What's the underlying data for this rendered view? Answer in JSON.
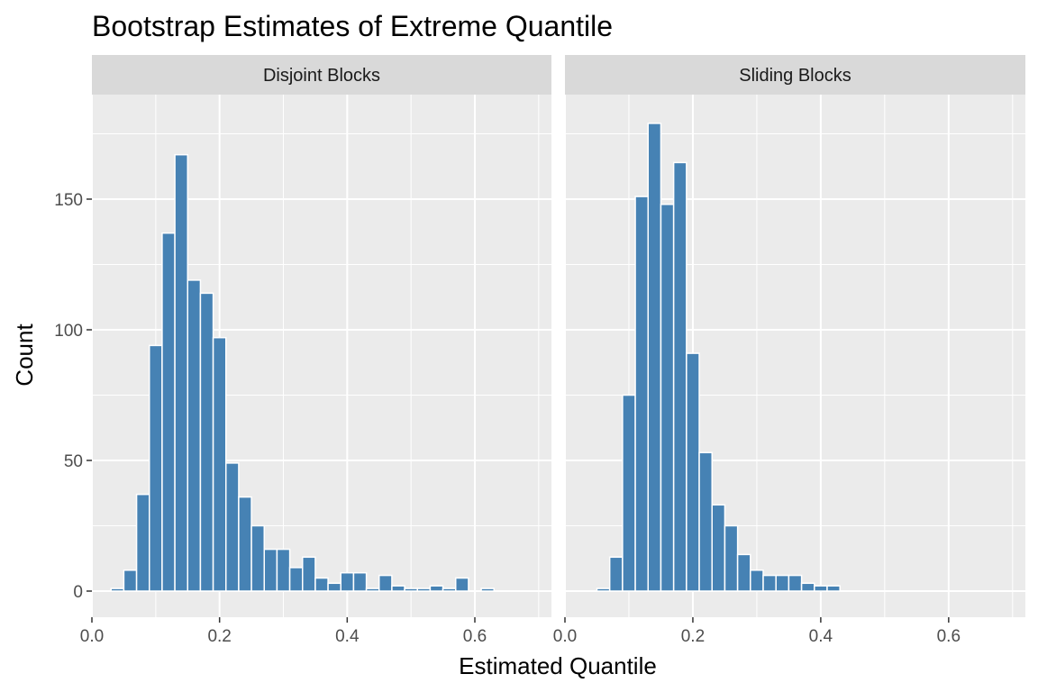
{
  "chart_data": {
    "type": "bar",
    "title": "Bootstrap Estimates of Extreme Quantile",
    "xlabel": "Estimated Quantile",
    "ylabel": "Count",
    "xlim": [
      0.0,
      0.72
    ],
    "ylim": [
      -10,
      190
    ],
    "x_ticks": [
      0.0,
      0.2,
      0.4,
      0.6
    ],
    "x_tick_labels": [
      "0.0",
      "0.2",
      "0.4",
      "0.6"
    ],
    "y_ticks": [
      0,
      50,
      100,
      150
    ],
    "y_tick_labels": [
      "0",
      "50",
      "100",
      "150"
    ],
    "grid": true,
    "bin_width": 0.02,
    "bar_color": "#4682B4",
    "bar_outline": "#ffffff",
    "panel_background": "#EBEBEB",
    "strip_background": "#D9D9D9",
    "panels": [
      {
        "name": "Disjoint Blocks",
        "bin_centers": [
          0.04,
          0.06,
          0.08,
          0.1,
          0.12,
          0.14,
          0.16,
          0.18,
          0.2,
          0.22,
          0.24,
          0.26,
          0.28,
          0.3,
          0.32,
          0.34,
          0.36,
          0.38,
          0.4,
          0.42,
          0.44,
          0.46,
          0.48,
          0.5,
          0.52,
          0.54,
          0.56,
          0.58,
          0.6,
          0.62,
          0.64,
          0.66,
          0.68
        ],
        "counts": [
          1,
          8,
          37,
          94,
          137,
          167,
          119,
          114,
          97,
          49,
          36,
          25,
          16,
          16,
          9,
          13,
          5,
          3,
          7,
          7,
          1,
          6,
          2,
          1,
          1,
          2,
          1,
          5,
          0,
          1,
          0,
          0,
          0
        ]
      },
      {
        "name": "Sliding Blocks",
        "bin_centers": [
          0.04,
          0.06,
          0.08,
          0.1,
          0.12,
          0.14,
          0.16,
          0.18,
          0.2,
          0.22,
          0.24,
          0.26,
          0.28,
          0.3,
          0.32,
          0.34,
          0.36,
          0.38,
          0.4,
          0.42,
          0.44,
          0.46,
          0.48,
          0.5,
          0.52,
          0.54,
          0.56,
          0.58,
          0.6,
          0.62,
          0.64,
          0.66,
          0.68
        ],
        "counts": [
          0,
          1,
          13,
          75,
          151,
          179,
          148,
          164,
          91,
          53,
          33,
          25,
          14,
          8,
          6,
          6,
          6,
          3,
          2,
          2,
          0,
          0,
          0,
          0,
          0,
          0,
          0,
          0,
          0,
          0,
          0,
          0,
          0
        ]
      }
    ]
  }
}
